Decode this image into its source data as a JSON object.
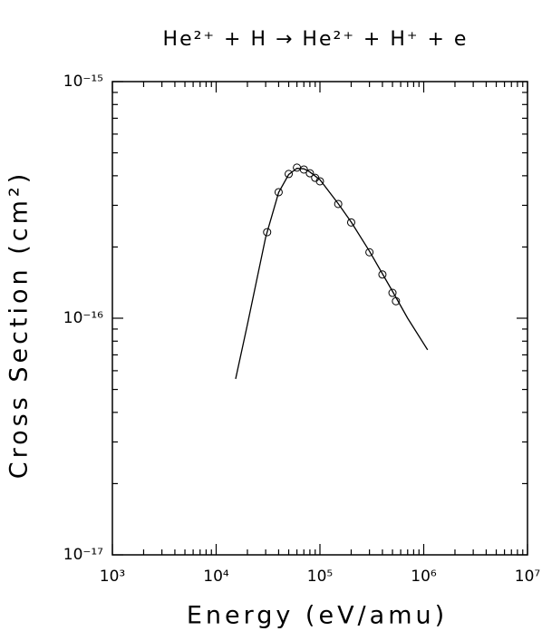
{
  "chart_data": {
    "type": "line",
    "title": "He²⁺ + H → He²⁺ + H⁺ + e",
    "xlabel": "Energy (eV/amu)",
    "ylabel": "Cross Section (cm²)",
    "xscale": "log",
    "yscale": "log",
    "xlim": [
      1000,
      10000000
    ],
    "ylim": [
      1e-17,
      1e-15
    ],
    "xticks": [
      {
        "value": 1000,
        "label": "10³"
      },
      {
        "value": 10000,
        "label": "10⁴"
      },
      {
        "value": 100000,
        "label": "10⁵"
      },
      {
        "value": 1000000,
        "label": "10⁶"
      },
      {
        "value": 10000000,
        "label": "10⁷"
      }
    ],
    "yticks": [
      {
        "value": 1e-17,
        "label": "10⁻¹⁷"
      },
      {
        "value": 1e-16,
        "label": "10⁻¹⁶"
      },
      {
        "value": 1e-15,
        "label": "10⁻¹⁵"
      }
    ],
    "xminorticks": [
      2000,
      3000,
      4000,
      5000,
      6000,
      7000,
      8000,
      9000,
      20000,
      30000,
      40000,
      50000,
      60000,
      70000,
      80000,
      90000,
      200000,
      300000,
      400000,
      500000,
      600000,
      700000,
      800000,
      900000,
      2000000,
      3000000,
      4000000,
      5000000,
      6000000,
      7000000,
      8000000,
      9000000
    ],
    "yminorticks": [
      2e-17,
      3e-17,
      4e-17,
      5e-17,
      6e-17,
      7e-17,
      8e-17,
      9e-17,
      2e-16,
      3e-16,
      4e-16,
      5e-16,
      6e-16,
      7e-16,
      8e-16,
      9e-16
    ],
    "series": [
      {
        "type": "line",
        "color": "#000000",
        "x": [
          15400,
          20000,
          30000,
          40000,
          50000,
          60000,
          70000,
          80000,
          100000,
          150000,
          200000,
          300000,
          500000,
          700000,
          1090000
        ],
        "values": [
          5.54e-17,
          9.4e-17,
          2.2e-16,
          3.4e-16,
          4.05e-16,
          4.3e-16,
          4.28e-16,
          4.15e-16,
          3.85e-16,
          3.05e-16,
          2.55e-16,
          1.92e-16,
          1.3e-16,
          1e-16,
          7.35e-17
        ]
      },
      {
        "type": "scatter",
        "color": "#000000",
        "x": [
          31000,
          40000,
          50000,
          60000,
          70000,
          80000,
          90000,
          100000,
          150000,
          200000,
          300000,
          400000,
          500000,
          540000
        ],
        "values": [
          2.31e-16,
          3.41e-16,
          4.07e-16,
          4.33e-16,
          4.25e-16,
          4.1e-16,
          3.92e-16,
          3.79e-16,
          3.04e-16,
          2.54e-16,
          1.9e-16,
          1.53e-16,
          1.28e-16,
          1.18e-16
        ]
      }
    ]
  }
}
